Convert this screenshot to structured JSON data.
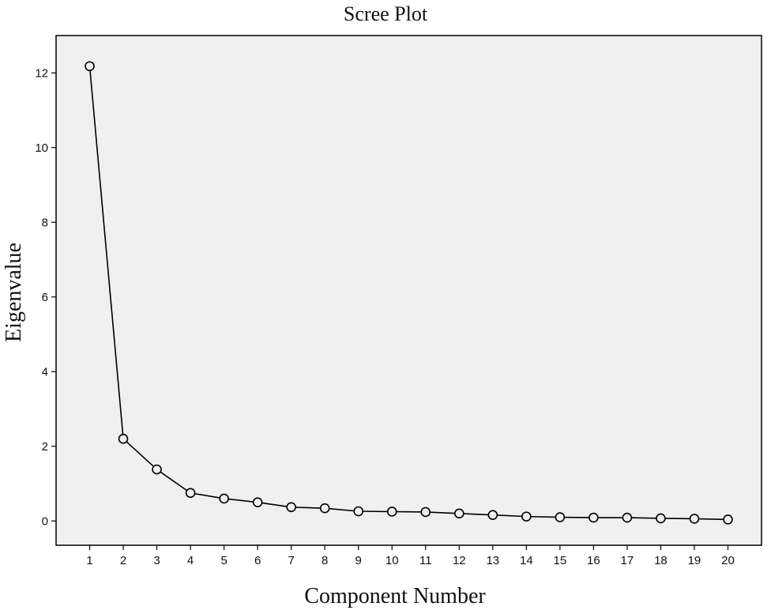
{
  "chart_data": {
    "type": "line",
    "title": "Scree Plot",
    "xlabel": "Component Number",
    "ylabel": "Eigenvalue",
    "x": [
      1,
      2,
      3,
      4,
      5,
      6,
      7,
      8,
      9,
      10,
      11,
      12,
      13,
      14,
      15,
      16,
      17,
      18,
      19,
      20
    ],
    "series": [
      {
        "values": [
          12.18,
          2.2,
          1.38,
          0.75,
          0.6,
          0.5,
          0.37,
          0.34,
          0.26,
          0.25,
          0.24,
          0.2,
          0.16,
          0.12,
          0.1,
          0.09,
          0.09,
          0.07,
          0.06,
          0.04
        ]
      }
    ],
    "xticks": [
      "1",
      "2",
      "3",
      "4",
      "5",
      "6",
      "7",
      "8",
      "9",
      "10",
      "11",
      "12",
      "13",
      "14",
      "15",
      "16",
      "17",
      "18",
      "19",
      "20"
    ],
    "yticks": [
      "0",
      "2",
      "4",
      "6",
      "8",
      "10",
      "12"
    ],
    "xlim": [
      0,
      21
    ],
    "ylim": [
      -0.65,
      13.0
    ],
    "grid": false,
    "marker": "open-circle",
    "colors": {
      "plot_background": "#f0f0f0",
      "line": "#000000",
      "frame": "#000000"
    }
  }
}
